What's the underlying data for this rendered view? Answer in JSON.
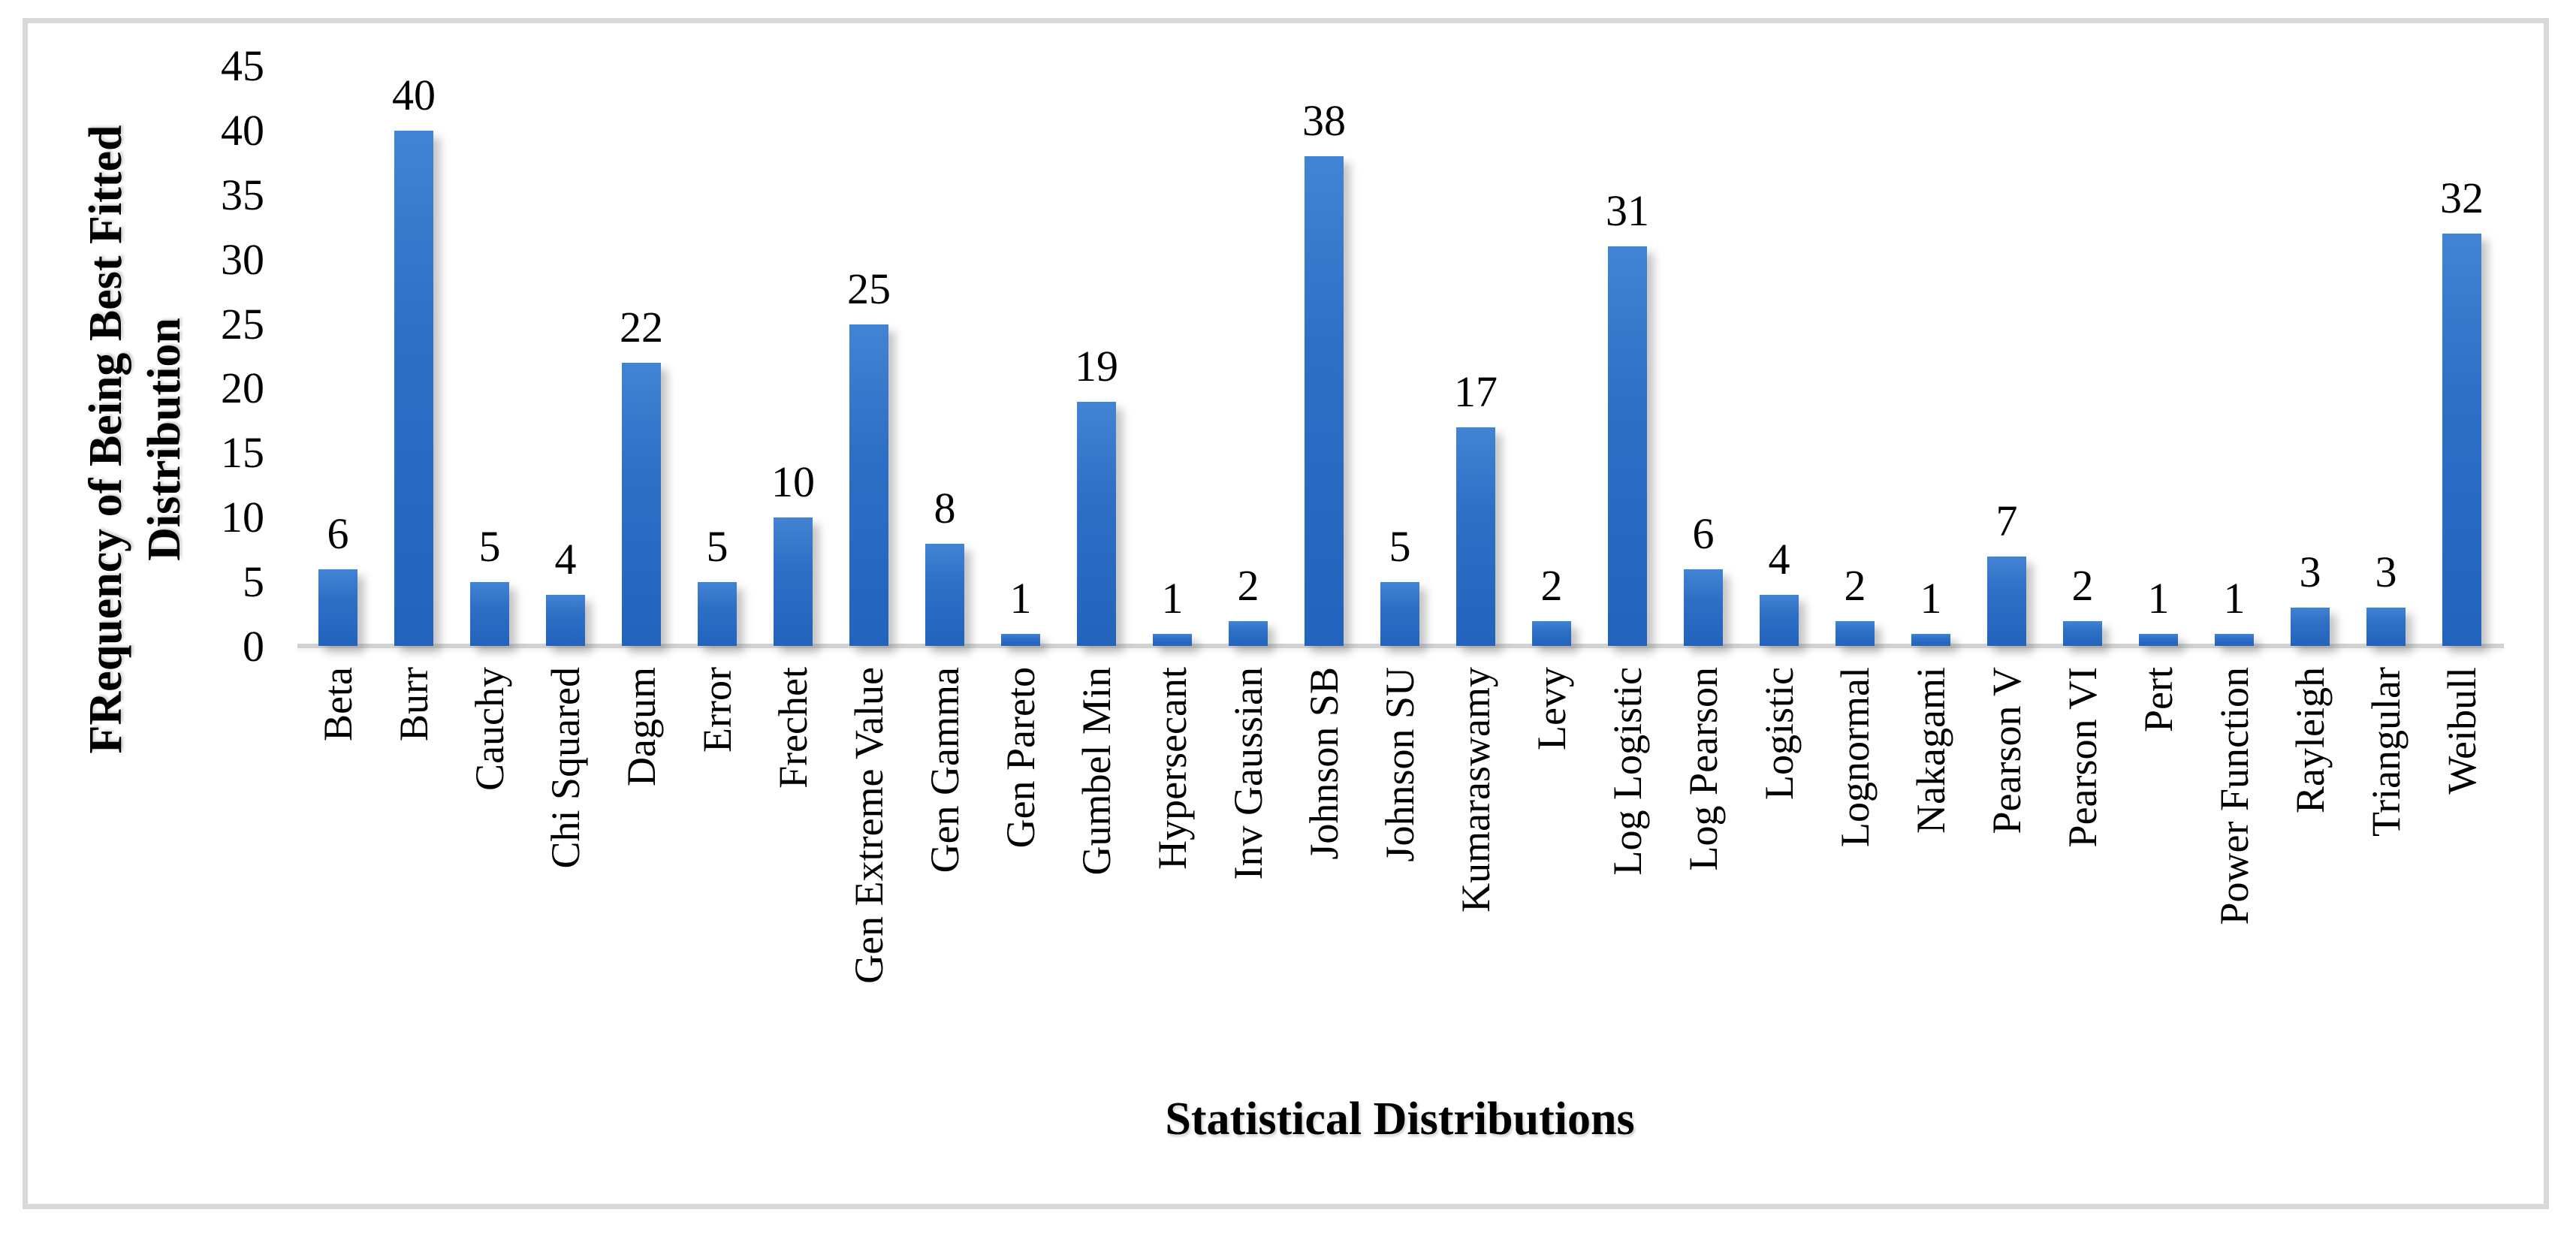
{
  "figure": {
    "y_axis": {
      "label_line1": "FRequency of Being Best Fitted",
      "label_line2": "Distribution"
    },
    "x_axis": {
      "label": "Statistical Distributions"
    }
  },
  "chart_data": {
    "type": "bar",
    "title": "",
    "categories": [
      "Beta",
      "Burr",
      "Cauchy",
      "Chi Squared",
      "Dagum",
      "Error",
      "Frechet",
      "Gen Extreme Value",
      "Gen Gamma",
      "Gen Pareto",
      "Gumbel Min",
      "Hypersecant",
      "Inv Gaussian",
      "Johnson SB",
      "Johnson SU",
      "Kumaraswamy",
      "Levy",
      "Log Logistic",
      "Log Pearson",
      "Logistic",
      "Lognormal",
      "Nakagami",
      "Pearson V",
      "Pearson VI",
      "Pert",
      "Power Function",
      "Rayleigh",
      "Triangular",
      "Weibull"
    ],
    "values": [
      6,
      40,
      5,
      4,
      22,
      5,
      10,
      25,
      8,
      1,
      19,
      1,
      2,
      38,
      5,
      17,
      2,
      31,
      6,
      4,
      2,
      1,
      7,
      2,
      1,
      1,
      3,
      3,
      32
    ],
    "xlabel": "Statistical Distributions",
    "ylabel": "FRequency of Being Best Fitted Distribution",
    "ylim": [
      0,
      45
    ],
    "yticks": [
      0,
      5,
      10,
      15,
      20,
      25,
      30,
      35,
      40,
      45
    ],
    "grid": false,
    "legend_position": "none",
    "data_labels": true,
    "bar_color": "#2e6fc6",
    "axis_line_color": "#d2d2d2",
    "frame_border_color": "#d9d9d9",
    "text_color": "#000000"
  }
}
